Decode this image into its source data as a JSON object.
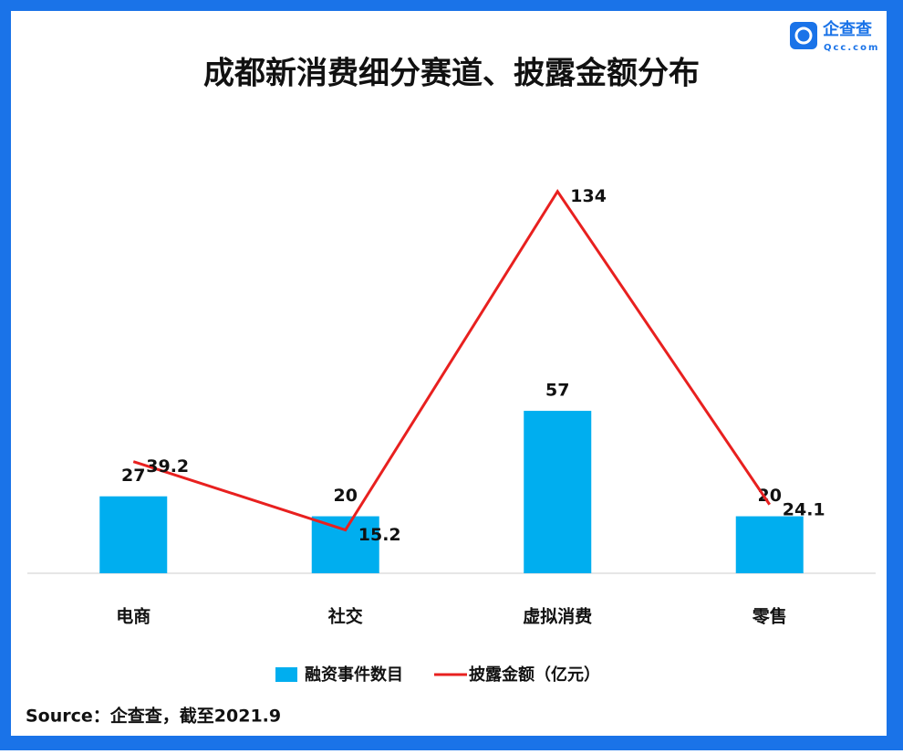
{
  "logo": {
    "name": "企查查",
    "site": "Qcc.com"
  },
  "chart_data": {
    "type": "bar-line",
    "title": "成都新消费细分赛道、披露金额分布",
    "categories": [
      "电商",
      "社交",
      "虚拟消费",
      "零售"
    ],
    "series": [
      {
        "name": "融资事件数目",
        "type": "bar",
        "color": "#00aeef",
        "values": [
          27,
          20,
          57,
          20
        ]
      },
      {
        "name": "披露金额（亿元）",
        "type": "line",
        "color": "#e8201f",
        "values": [
          39.2,
          15.2,
          134,
          24.1
        ]
      }
    ],
    "ylim": [
      0,
      140
    ],
    "source": "Source：企查查，截至2021.9"
  }
}
